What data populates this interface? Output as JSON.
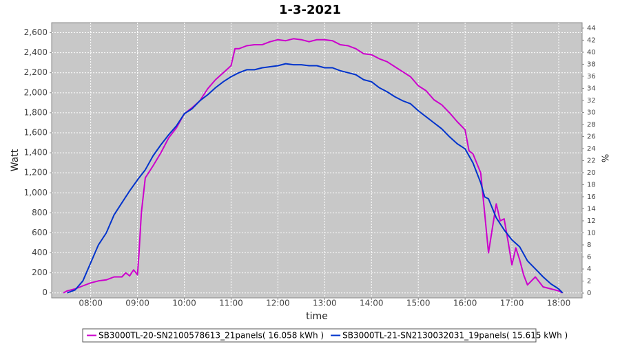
{
  "chart_data": {
    "type": "line",
    "title": "1-3-2021",
    "x_label": "time",
    "y_label": "Watt",
    "y2_label": "%",
    "xlim": [
      "07:10",
      "18:30"
    ],
    "xticks": [
      "08:00",
      "09:00",
      "10:00",
      "11:00",
      "12:00",
      "13:00",
      "14:00",
      "15:00",
      "16:00",
      "17:00",
      "18:00"
    ],
    "ylim": [
      -50,
      2700
    ],
    "yticks": [
      0,
      200,
      400,
      600,
      800,
      {
        "value": 1000,
        "label": "1,000"
      },
      {
        "value": 1200,
        "label": "1,200"
      },
      {
        "value": 1400,
        "label": "1,400"
      },
      {
        "value": 1600,
        "label": "1,600"
      },
      {
        "value": 1800,
        "label": "1,800"
      },
      {
        "value": 2000,
        "label": "2,000"
      },
      {
        "value": 2200,
        "label": "2,200"
      },
      {
        "value": 2400,
        "label": "2,400"
      },
      {
        "value": 2600,
        "label": "2,600"
      }
    ],
    "y2lim": [
      -0.8,
      44.9
    ],
    "y2ticks": [
      0,
      2,
      4,
      6,
      8,
      10,
      12,
      14,
      16,
      18,
      20,
      22,
      24,
      26,
      28,
      30,
      32,
      34,
      36,
      38,
      40,
      42,
      44
    ],
    "grid": true,
    "legend": "bottom",
    "series": [
      {
        "name": "SB3000TL-20-SN2100578613_21panels( 16.058 kWh )",
        "color": "#cc00cc",
        "x": [
          "07:25",
          "07:30",
          "07:40",
          "07:50",
          "08:00",
          "08:10",
          "08:20",
          "08:30",
          "08:40",
          "08:45",
          "08:50",
          "08:55",
          "09:00",
          "09:02",
          "09:05",
          "09:10",
          "09:20",
          "09:30",
          "09:40",
          "09:50",
          "10:00",
          "10:10",
          "10:20",
          "10:30",
          "10:40",
          "10:50",
          "11:00",
          "11:05",
          "11:10",
          "11:20",
          "11:30",
          "11:40",
          "11:50",
          "12:00",
          "12:10",
          "12:20",
          "12:30",
          "12:40",
          "12:50",
          "13:00",
          "13:10",
          "13:20",
          "13:30",
          "13:40",
          "13:50",
          "14:00",
          "14:10",
          "14:20",
          "14:30",
          "14:40",
          "14:50",
          "15:00",
          "15:10",
          "15:20",
          "15:30",
          "15:40",
          "15:50",
          "16:00",
          "16:05",
          "16:10",
          "16:20",
          "16:25",
          "16:30",
          "16:35",
          "16:40",
          "16:45",
          "16:50",
          "16:55",
          "17:00",
          "17:05",
          "17:10",
          "17:15",
          "17:20",
          "17:30",
          "17:40",
          "17:50",
          "18:00",
          "18:05"
        ],
        "values": [
          0,
          20,
          40,
          70,
          100,
          120,
          130,
          160,
          160,
          200,
          170,
          230,
          180,
          400,
          800,
          1150,
          1270,
          1400,
          1550,
          1650,
          1790,
          1850,
          1920,
          2040,
          2130,
          2200,
          2270,
          2440,
          2440,
          2470,
          2480,
          2480,
          2510,
          2530,
          2520,
          2540,
          2530,
          2510,
          2530,
          2530,
          2520,
          2480,
          2470,
          2440,
          2390,
          2380,
          2340,
          2310,
          2260,
          2210,
          2160,
          2070,
          2020,
          1930,
          1880,
          1800,
          1710,
          1630,
          1420,
          1390,
          1200,
          800,
          400,
          650,
          890,
          720,
          740,
          520,
          280,
          450,
          330,
          180,
          80,
          160,
          60,
          40,
          20,
          0
        ]
      },
      {
        "name": "SB3000TL-21-SN2130032031_19panels( 15.615 kWh )",
        "color": "#0033cc",
        "x": [
          "07:30",
          "07:40",
          "07:50",
          "08:00",
          "08:10",
          "08:20",
          "08:30",
          "08:40",
          "08:50",
          "09:00",
          "09:10",
          "09:20",
          "09:30",
          "09:40",
          "09:50",
          "10:00",
          "10:10",
          "10:20",
          "10:30",
          "10:40",
          "10:50",
          "11:00",
          "11:10",
          "11:20",
          "11:30",
          "11:40",
          "11:50",
          "12:00",
          "12:10",
          "12:20",
          "12:30",
          "12:40",
          "12:50",
          "13:00",
          "13:10",
          "13:20",
          "13:30",
          "13:40",
          "13:50",
          "14:00",
          "14:10",
          "14:20",
          "14:30",
          "14:40",
          "14:50",
          "15:00",
          "15:10",
          "15:20",
          "15:30",
          "15:40",
          "15:50",
          "16:00",
          "16:10",
          "16:20",
          "16:25",
          "16:30",
          "16:40",
          "16:50",
          "17:00",
          "17:10",
          "17:20",
          "17:30",
          "17:40",
          "17:50",
          "18:00",
          "18:05"
        ],
        "values": [
          0,
          30,
          120,
          300,
          480,
          600,
          780,
          900,
          1020,
          1130,
          1230,
          1370,
          1480,
          1580,
          1670,
          1790,
          1840,
          1920,
          1980,
          2050,
          2110,
          2160,
          2200,
          2230,
          2230,
          2250,
          2260,
          2270,
          2290,
          2280,
          2280,
          2270,
          2270,
          2250,
          2250,
          2220,
          2200,
          2180,
          2130,
          2110,
          2050,
          2010,
          1960,
          1920,
          1890,
          1820,
          1760,
          1700,
          1640,
          1560,
          1490,
          1440,
          1300,
          1100,
          960,
          940,
          750,
          630,
          530,
          460,
          320,
          240,
          160,
          90,
          40,
          0
        ]
      }
    ]
  }
}
